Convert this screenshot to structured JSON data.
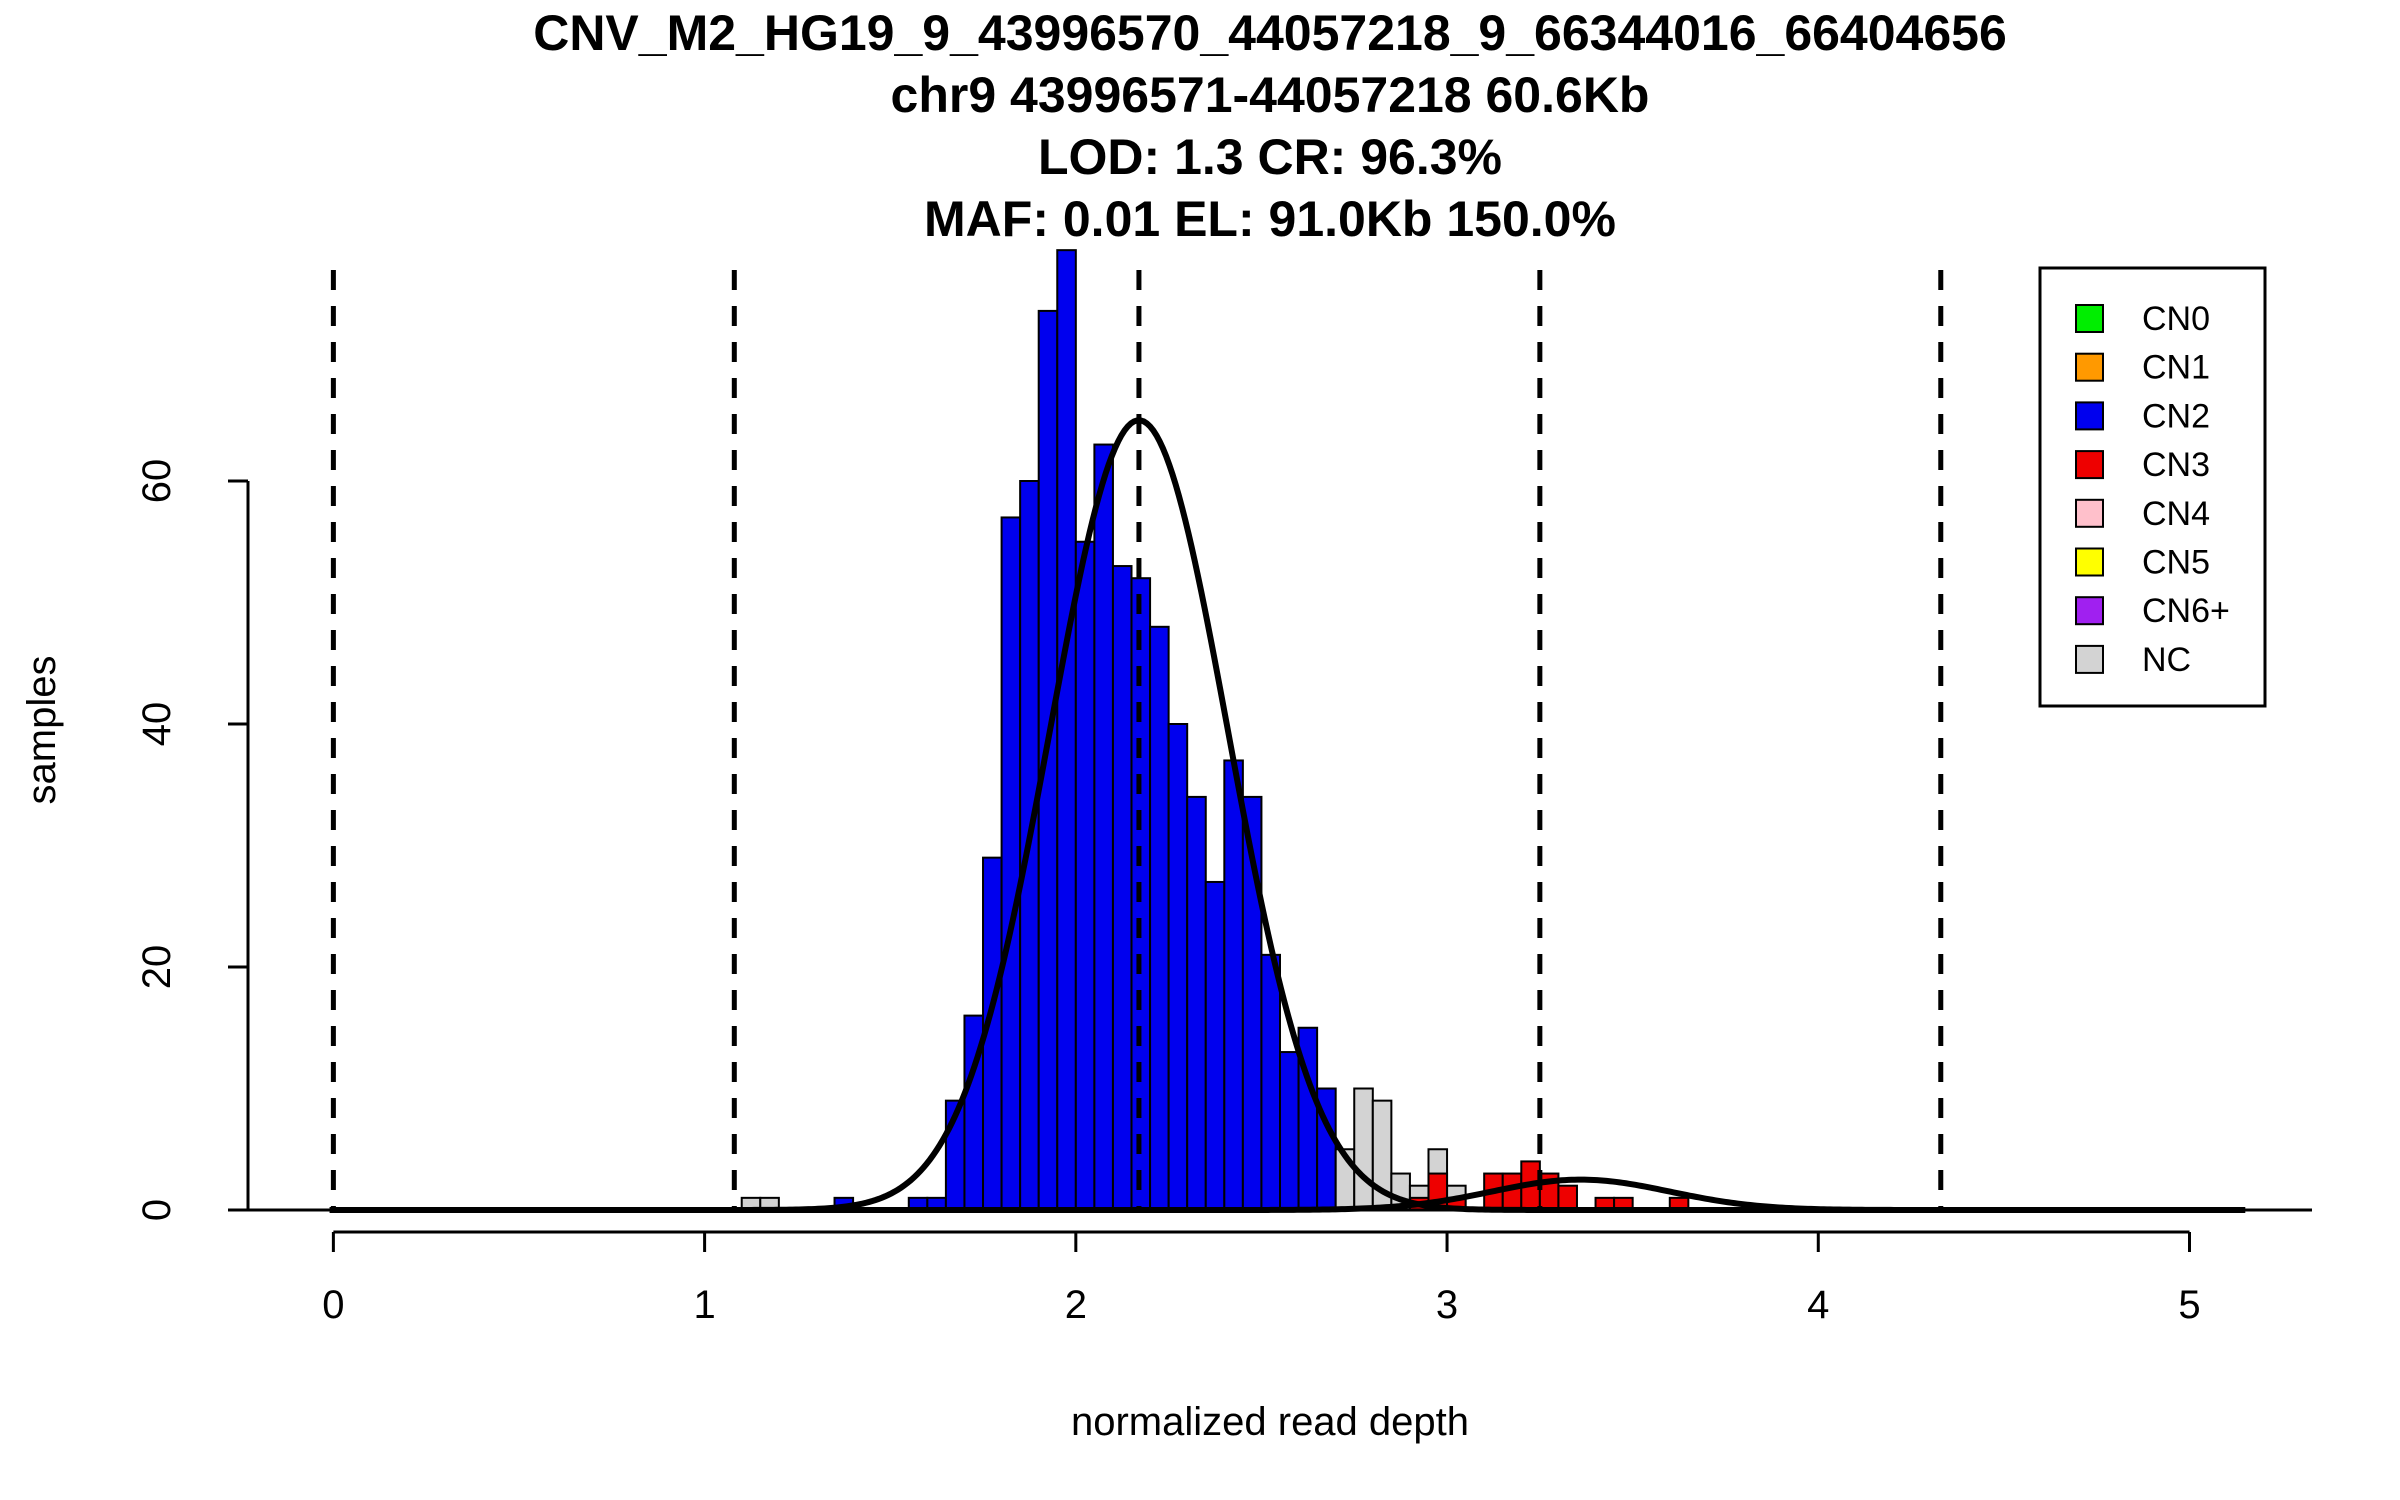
{
  "chart_data": {
    "type": "bar",
    "title_lines": [
      "CNV_M2_HG19_9_43996570_44057218_9_66344016_66404656",
      "chr9 43996571-44057218 60.6Kb",
      "LOD: 1.3 CR: 96.3%",
      "MAF: 0.01 EL: 91.0Kb 150.0%"
    ],
    "xlabel": "normalized read depth",
    "ylabel": "samples",
    "xlim": [
      -0.23,
      5.33
    ],
    "ylim": [
      0,
      80
    ],
    "x_ticks": [
      0,
      1,
      2,
      3,
      4,
      5
    ],
    "y_ticks": [
      0,
      20,
      40,
      60
    ],
    "bin_width": 0.05,
    "dashed_lines": [
      0.0,
      1.08,
      2.17,
      3.25,
      4.33
    ],
    "legend": {
      "position": "top-right",
      "items": [
        {
          "label": "CN0",
          "color": "#00ee00"
        },
        {
          "label": "CN1",
          "color": "#ff9900"
        },
        {
          "label": "CN2",
          "color": "#0000ee"
        },
        {
          "label": "CN3",
          "color": "#ee0000"
        },
        {
          "label": "CN4",
          "color": "#ffc0cb"
        },
        {
          "label": "CN5",
          "color": "#ffff00"
        },
        {
          "label": "CN6+",
          "color": "#a020f0"
        },
        {
          "label": "NC",
          "color": "#d3d3d3"
        }
      ]
    },
    "series": [
      {
        "name": "CN2",
        "color": "#0000ee",
        "bins": [
          {
            "x": 1.375,
            "value": 1
          },
          {
            "x": 1.575,
            "value": 1
          },
          {
            "x": 1.625,
            "value": 1
          },
          {
            "x": 1.675,
            "value": 9
          },
          {
            "x": 1.725,
            "value": 16
          },
          {
            "x": 1.775,
            "value": 29
          },
          {
            "x": 1.825,
            "value": 57
          },
          {
            "x": 1.875,
            "value": 60
          },
          {
            "x": 1.925,
            "value": 74
          },
          {
            "x": 1.975,
            "value": 79
          },
          {
            "x": 2.025,
            "value": 55
          },
          {
            "x": 2.075,
            "value": 63
          },
          {
            "x": 2.125,
            "value": 53
          },
          {
            "x": 2.175,
            "value": 52
          },
          {
            "x": 2.225,
            "value": 48
          },
          {
            "x": 2.275,
            "value": 40
          },
          {
            "x": 2.325,
            "value": 34
          },
          {
            "x": 2.375,
            "value": 27
          },
          {
            "x": 2.425,
            "value": 37
          },
          {
            "x": 2.475,
            "value": 34
          },
          {
            "x": 2.525,
            "value": 21
          },
          {
            "x": 2.575,
            "value": 13
          },
          {
            "x": 2.625,
            "value": 15
          },
          {
            "x": 2.675,
            "value": 10
          }
        ]
      },
      {
        "name": "NC",
        "color": "#d3d3d3",
        "bins": [
          {
            "x": 1.125,
            "value": 1
          },
          {
            "x": 1.175,
            "value": 1
          },
          {
            "x": 2.725,
            "value": 5
          },
          {
            "x": 2.775,
            "value": 10
          },
          {
            "x": 2.825,
            "value": 9
          },
          {
            "x": 2.875,
            "value": 3
          },
          {
            "x": 2.925,
            "value": 2
          },
          {
            "x": 2.975,
            "value": 5
          },
          {
            "x": 3.025,
            "value": 2
          }
        ]
      },
      {
        "name": "CN3",
        "color": "#ee0000",
        "bins": [
          {
            "x": 2.925,
            "value": 1
          },
          {
            "x": 2.975,
            "value": 3
          },
          {
            "x": 3.025,
            "value": 1
          },
          {
            "x": 3.125,
            "value": 3
          },
          {
            "x": 3.175,
            "value": 3
          },
          {
            "x": 3.225,
            "value": 4
          },
          {
            "x": 3.275,
            "value": 3
          },
          {
            "x": 3.325,
            "value": 2
          },
          {
            "x": 3.425,
            "value": 1
          },
          {
            "x": 3.475,
            "value": 1
          },
          {
            "x": 3.625,
            "value": 1
          }
        ]
      }
    ],
    "curves": [
      {
        "name": "CN2 fit",
        "mean": 2.17,
        "sd": 0.24,
        "peak": 65
      },
      {
        "name": "CN3 fit",
        "mean": 3.36,
        "sd": 0.24,
        "peak": 2.5
      }
    ]
  }
}
